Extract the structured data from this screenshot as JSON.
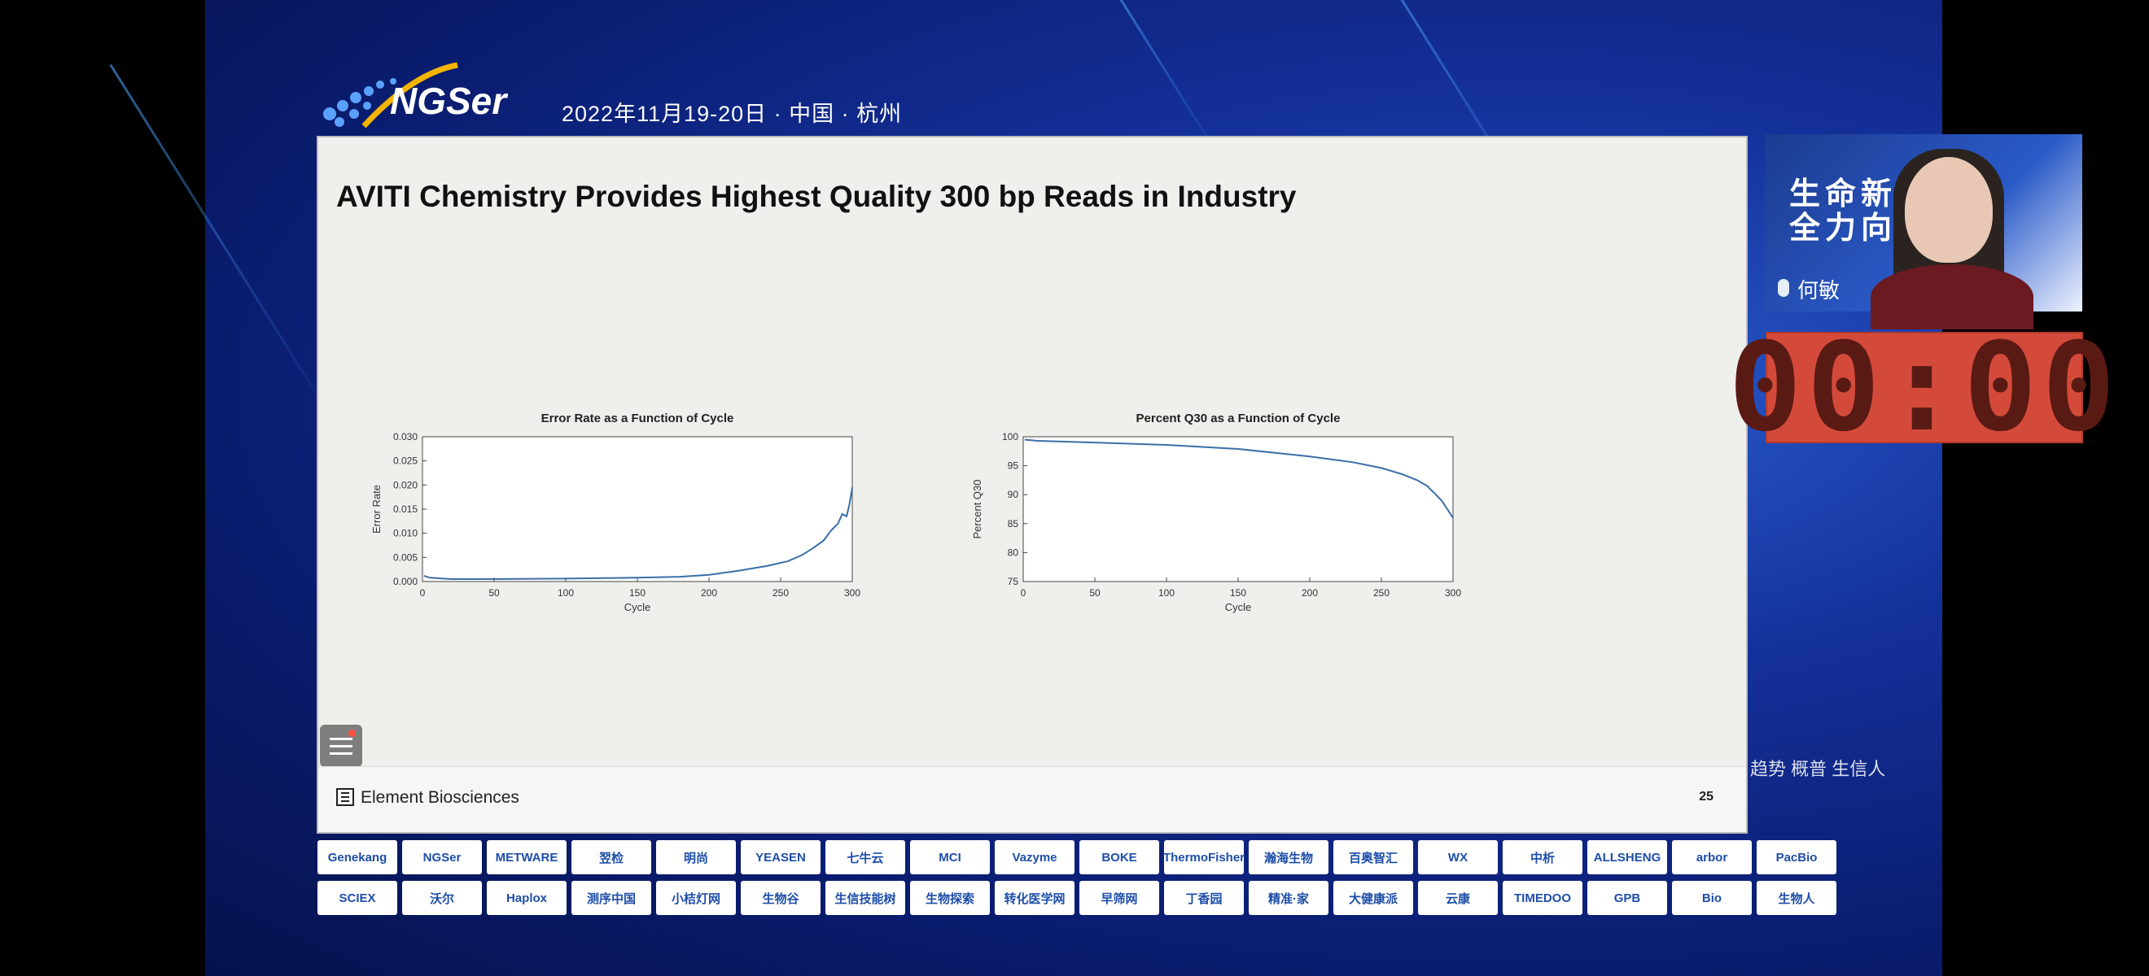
{
  "event": {
    "logo_text": "NGSer",
    "date_location": "2022年11月19-20日 · 中国 · 杭州"
  },
  "slide": {
    "title": "AVITI Chemistry Provides Highest Quality 300 bp Reads in Industry",
    "company": "Element Biosciences",
    "page_number": "25"
  },
  "speaker": {
    "name": "何敏",
    "banner_line1": "生命新",
    "banner_line2": "全力向"
  },
  "timer": {
    "display": "00:00"
  },
  "side_caption": "趋势 概普 生信人",
  "chart_data": [
    {
      "type": "line",
      "title": "Error Rate as a Function of Cycle",
      "xlabel": "Cycle",
      "ylabel": "Error Rate",
      "xlim": [
        0,
        300
      ],
      "ylim": [
        0,
        0.03
      ],
      "xticks": [
        "0",
        "50",
        "100",
        "150",
        "200",
        "250",
        "300"
      ],
      "yticks": [
        "0.000",
        "0.005",
        "0.010",
        "0.015",
        "0.020",
        "0.025",
        "0.030"
      ],
      "series": [
        {
          "x": [
            1,
            5,
            20,
            50,
            100,
            150,
            180,
            200,
            220,
            240,
            255,
            265,
            272,
            280,
            285,
            290,
            293,
            296,
            298,
            300
          ],
          "y": [
            0.0012,
            0.0008,
            0.0005,
            0.0005,
            0.0006,
            0.0008,
            0.001,
            0.0014,
            0.0022,
            0.0032,
            0.0042,
            0.0055,
            0.0068,
            0.0085,
            0.0105,
            0.012,
            0.014,
            0.0135,
            0.016,
            0.0195
          ]
        }
      ]
    },
    {
      "type": "line",
      "title": "Percent Q30 as a Function of Cycle",
      "xlabel": "Cycle",
      "ylabel": "Percent Q30",
      "xlim": [
        0,
        300
      ],
      "ylim": [
        75,
        100
      ],
      "xticks": [
        "0",
        "50",
        "100",
        "150",
        "200",
        "250",
        "300"
      ],
      "yticks": [
        "75",
        "80",
        "85",
        "90",
        "95",
        "100"
      ],
      "series": [
        {
          "x": [
            1,
            10,
            50,
            100,
            150,
            200,
            230,
            250,
            265,
            275,
            282,
            288,
            292,
            296,
            300
          ],
          "y": [
            99.5,
            99.3,
            99,
            98.6,
            97.9,
            96.6,
            95.6,
            94.6,
            93.5,
            92.5,
            91.5,
            90,
            89,
            87.5,
            86
          ]
        }
      ]
    }
  ],
  "sponsors_row1": [
    "Genekang",
    "NGSer",
    "METWARE",
    "翌检",
    "明尚",
    "YEASEN",
    "七牛云",
    "MCI",
    "Vazyme",
    "BOKE",
    "ThermoFisher",
    "瀚海生物",
    "百奥智汇",
    "WX",
    "中析",
    "ALLSHENG",
    "arbor",
    "PacBio"
  ],
  "sponsors_row2": [
    "SCIEX",
    "沃尔",
    "Haplox",
    "测序中国",
    "小桔灯网",
    "生物谷",
    "生信技能树",
    "生物探索",
    "转化医学网",
    "早筛网",
    "丁香园",
    "精准·家",
    "大健康派",
    "云康",
    "TIMEDOO",
    "GPB",
    "Bio",
    "生物人"
  ]
}
